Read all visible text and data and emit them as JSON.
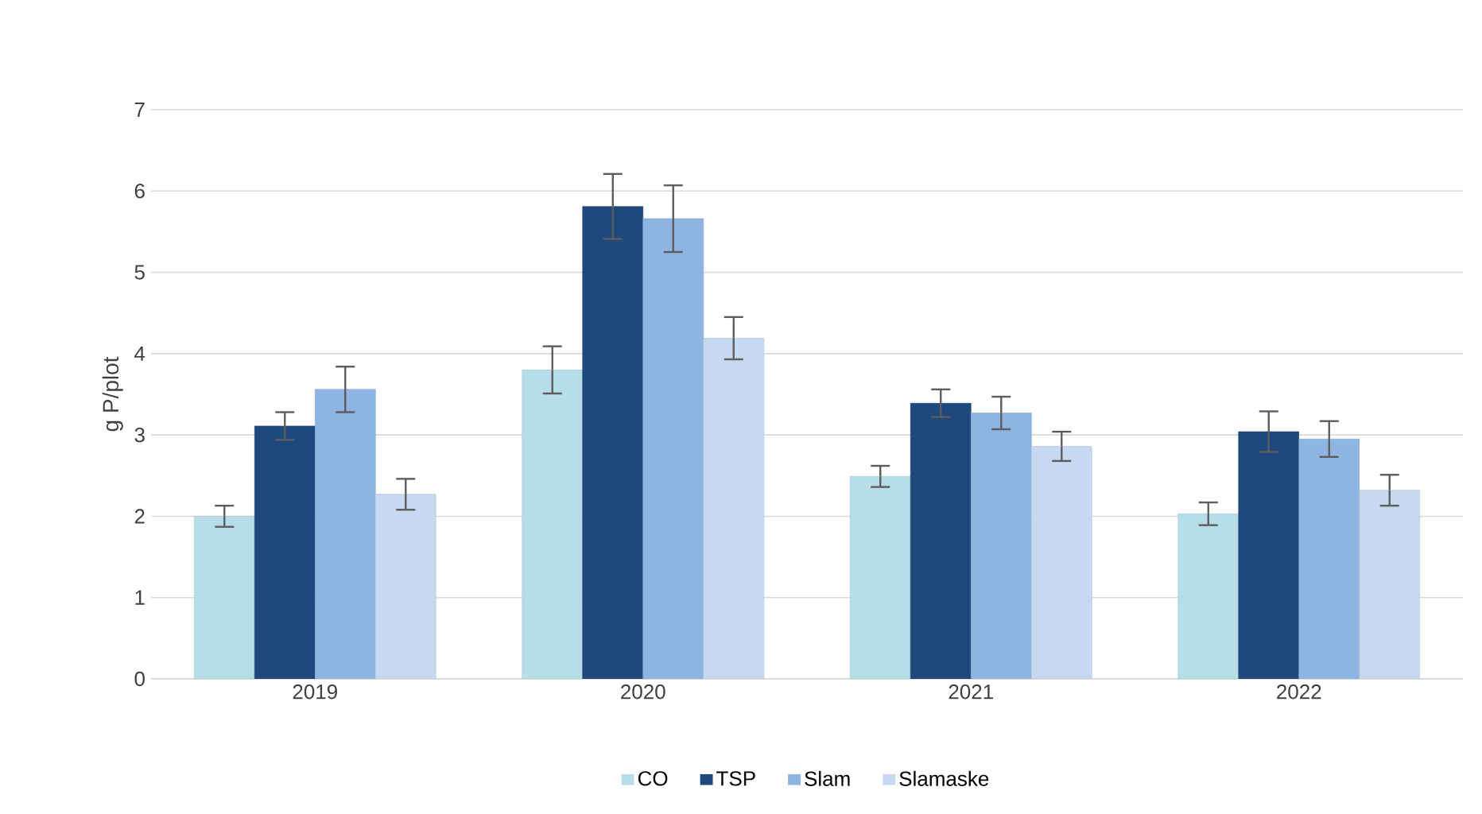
{
  "chart_data": {
    "type": "bar",
    "ylabel": "g P/plot",
    "categories": [
      "2019",
      "2020",
      "2021",
      "2022"
    ],
    "series": [
      {
        "name": "CO",
        "color": "#b6dde8",
        "values": [
          2.0,
          3.8,
          2.49,
          2.03
        ],
        "errors": [
          0.13,
          0.29,
          0.13,
          0.14
        ]
      },
      {
        "name": "TSP",
        "color": "#1f497d",
        "values": [
          3.11,
          5.81,
          3.39,
          3.04
        ],
        "errors": [
          0.17,
          0.4,
          0.17,
          0.25
        ]
      },
      {
        "name": "Slam",
        "color": "#8eb4e3",
        "values": [
          3.56,
          5.66,
          3.27,
          2.95
        ],
        "errors": [
          0.28,
          0.41,
          0.2,
          0.22
        ]
      },
      {
        "name": "Slamaske",
        "color": "#c6d9f1",
        "values": [
          2.27,
          4.19,
          2.86,
          2.32
        ],
        "errors": [
          0.19,
          0.26,
          0.18,
          0.19
        ]
      }
    ],
    "ylim": [
      0,
      7
    ],
    "yticks": [
      0,
      1,
      2,
      3,
      4,
      5,
      6,
      7
    ],
    "grid": "y",
    "legend": "bottom"
  }
}
